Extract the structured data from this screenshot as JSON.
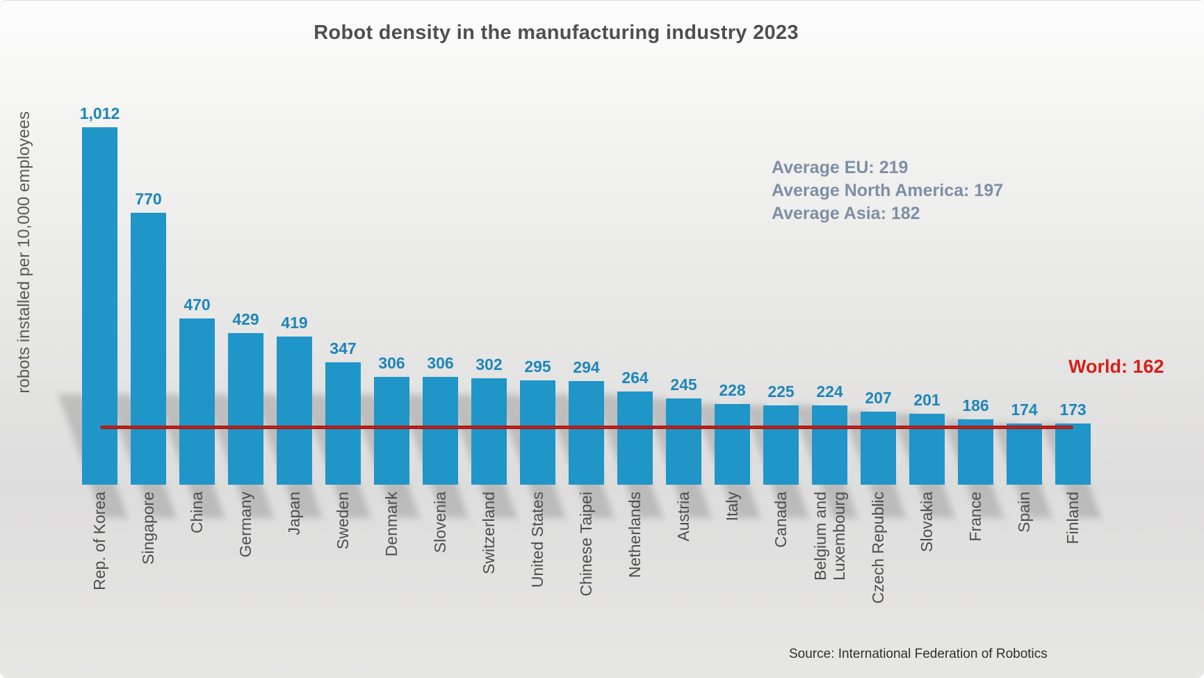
{
  "chart_data": {
    "type": "bar",
    "title": "Robot density in the manufacturing industry 2023",
    "ylabel": "robots installed per 10,000 employees",
    "xlabel": "",
    "ylim": [
      0,
      1012
    ],
    "grid": false,
    "legend_position": "none",
    "bar_color": "#2095c8",
    "value_label_color": "#1e86b8",
    "categories": [
      "Rep. of Korea",
      "Singapore",
      "China",
      "Germany",
      "Japan",
      "Sweden",
      "Denmark",
      "Slovenia",
      "Switzerland",
      "United States",
      "Chinese Taipei",
      "Netherlands",
      "Austria",
      "Italy",
      "Canada",
      "Belgium and\nLuxembourg",
      "Czech Republic",
      "Slovakia",
      "France",
      "Spain",
      "Finland"
    ],
    "values": [
      1012,
      770,
      470,
      429,
      419,
      347,
      306,
      306,
      302,
      295,
      294,
      264,
      245,
      228,
      225,
      224,
      207,
      201,
      186,
      174,
      173
    ],
    "value_labels": [
      "1,012",
      "770",
      "470",
      "429",
      "419",
      "347",
      "306",
      "306",
      "302",
      "295",
      "294",
      "264",
      "245",
      "228",
      "225",
      "224",
      "207",
      "201",
      "186",
      "174",
      "173"
    ],
    "reference_line": {
      "label": "World: 162",
      "value": 162,
      "color": "#b71a12"
    }
  },
  "annotations": {
    "averages": [
      "Average EU: 219",
      "Average North America: 197",
      "Average Asia: 182"
    ],
    "averages_color": "#7d8fa4",
    "world_label": "World: 162",
    "world_color": "#d32017"
  },
  "source": "Source: International Federation of Robotics"
}
